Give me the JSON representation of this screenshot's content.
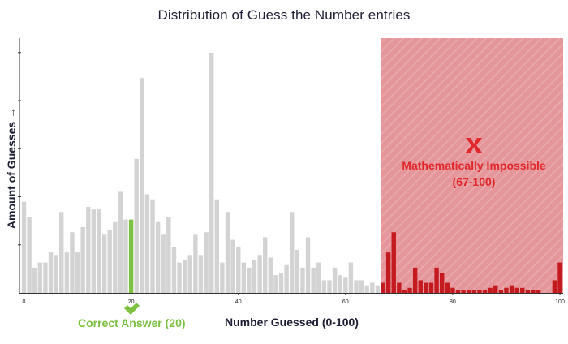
{
  "chart_data": {
    "type": "bar",
    "title": "Distribution of Guess the Number entries",
    "xlabel": "Number Guessed (0-100)",
    "ylabel": "Amount of Guesses",
    "ylabel_arrow": "→",
    "xlim": [
      0,
      100
    ],
    "x_ticks": [
      0,
      20,
      40,
      60,
      80,
      100
    ],
    "ylim": [
      0,
      100
    ],
    "y_tick_labels_shown": false,
    "x": [
      0,
      1,
      2,
      3,
      4,
      5,
      6,
      7,
      8,
      9,
      10,
      11,
      12,
      13,
      14,
      15,
      16,
      17,
      18,
      19,
      20,
      21,
      22,
      23,
      24,
      25,
      26,
      27,
      28,
      29,
      30,
      31,
      32,
      33,
      34,
      35,
      36,
      37,
      38,
      39,
      40,
      41,
      42,
      43,
      44,
      45,
      46,
      47,
      48,
      49,
      50,
      51,
      52,
      53,
      54,
      55,
      56,
      57,
      58,
      59,
      60,
      61,
      62,
      63,
      64,
      65,
      66,
      67,
      68,
      69,
      70,
      71,
      72,
      73,
      74,
      75,
      76,
      77,
      78,
      79,
      80,
      81,
      82,
      83,
      84,
      85,
      86,
      87,
      88,
      89,
      90,
      91,
      92,
      93,
      94,
      95,
      96,
      97,
      98,
      99,
      100
    ],
    "values": [
      36,
      30,
      10,
      12,
      12,
      16,
      15,
      32,
      16,
      24,
      16,
      26,
      34,
      33,
      33,
      23,
      25,
      28,
      40,
      29,
      29,
      53,
      85,
      39,
      37,
      28,
      23,
      30,
      18,
      12,
      13,
      15,
      23,
      15,
      24,
      95,
      37,
      12,
      32,
      21,
      18,
      12,
      10,
      13,
      15,
      22,
      14,
      7,
      8,
      11,
      32,
      17,
      10,
      22,
      10,
      12,
      5,
      5,
      10,
      7,
      6,
      12,
      5,
      5,
      3,
      4,
      3,
      4,
      16,
      24,
      4,
      1,
      2,
      10,
      5,
      4,
      4,
      10,
      8,
      4,
      2,
      1,
      1,
      1,
      1,
      1,
      1,
      2,
      3,
      1,
      2,
      3,
      2,
      2,
      1,
      1,
      1,
      0,
      0,
      5,
      12
    ],
    "correct_answer": 20,
    "impossible_range": [
      67,
      100
    ],
    "colors": {
      "bar": "#d3d3d3",
      "bar_correct": "#7cc142",
      "bar_impossible": "#c41a1f",
      "impossible_region": "#e5969a",
      "impossible_text": "#e0272b",
      "correct_text": "#7cc142",
      "axis": "#333333"
    },
    "annotations": {
      "correct_label": "Correct Answer (20)",
      "correct_icon": "check-icon",
      "impossible_label_line1": "Mathematically Impossible",
      "impossible_label_line2": "(67-100)",
      "impossible_icon": "x-icon"
    }
  }
}
